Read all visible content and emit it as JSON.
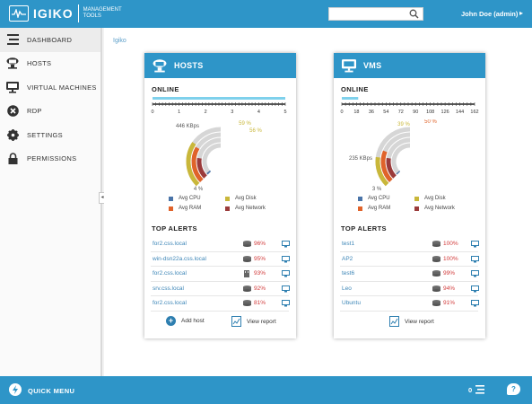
{
  "header": {
    "logo_text": "IGIKO",
    "logo_sub1": "MANAGEMENT",
    "logo_sub2": "TOOLS",
    "search_placeholder": "",
    "user": "John Doe (admin)"
  },
  "sidebar": {
    "items": [
      {
        "label": "DASHBOARD",
        "icon": "dashboard-icon",
        "active": true
      },
      {
        "label": "HOSTS",
        "icon": "hosts-icon"
      },
      {
        "label": "VIRTUAL MACHINES",
        "icon": "monitor-icon"
      },
      {
        "label": "RDP",
        "icon": "rdp-icon"
      },
      {
        "label": "SETTINGS",
        "icon": "gear-icon"
      },
      {
        "label": "PERMISSIONS",
        "icon": "lock-icon"
      }
    ]
  },
  "breadcrumb": "Igiko",
  "hosts_card": {
    "title": "HOSTS",
    "online_label": "ONLINE",
    "online_ticks": [
      "0",
      "1",
      "2",
      "3",
      "4",
      "5"
    ],
    "online_value": 5,
    "online_max": 5,
    "gauge": {
      "cpu_pct": 4,
      "ram_pct": 56,
      "disk_pct": 59,
      "net_value": "446 KBps",
      "labels": {
        "net": "446 KBps",
        "disk": "59 %",
        "ram": "56 %",
        "cpu": "4 %"
      }
    },
    "legend": {
      "cpu": "Avg CPU",
      "disk": "Avg Disk",
      "ram": "Avg RAM",
      "net": "Avg Network"
    },
    "alerts_title": "TOP ALERTS",
    "alerts": [
      {
        "name": "for2.css.local",
        "device": "disk",
        "pct": "96%"
      },
      {
        "name": "win-dsn22a.css.local",
        "device": "disk",
        "pct": "95%"
      },
      {
        "name": "for2.css.local",
        "device": "memory",
        "pct": "93%"
      },
      {
        "name": "srv.css.local",
        "device": "disk",
        "pct": "92%"
      },
      {
        "name": "for2.css.local",
        "device": "disk",
        "pct": "81%"
      }
    ],
    "add_label": "Add host",
    "report_label": "View report"
  },
  "vms_card": {
    "title": "VMS",
    "online_label": "ONLINE",
    "online_ticks": [
      "0",
      "18",
      "36",
      "54",
      "72",
      "90",
      "108",
      "126",
      "144",
      "162"
    ],
    "online_value": 20,
    "online_max": 162,
    "gauge": {
      "cpu_pct": 3,
      "ram_pct": 50,
      "disk_pct": 39,
      "net_value": "235 KBps",
      "labels": {
        "disk": "39 %",
        "ram": "50 %",
        "net": "235 KBps",
        "cpu": "3 %"
      }
    },
    "legend": {
      "cpu": "Avg CPU",
      "disk": "Avg Disk",
      "ram": "Avg RAM",
      "net": "Avg Network"
    },
    "alerts_title": "TOP ALERTS",
    "alerts": [
      {
        "name": "test1",
        "device": "disk",
        "pct": "100%"
      },
      {
        "name": "AP2",
        "device": "disk",
        "pct": "100%"
      },
      {
        "name": "test6",
        "device": "disk",
        "pct": "99%"
      },
      {
        "name": "Leo",
        "device": "disk",
        "pct": "94%"
      },
      {
        "name": "Ubuntu",
        "device": "disk",
        "pct": "91%"
      }
    ],
    "report_label": "View report"
  },
  "footer": {
    "quick_menu": "QUICK MENU",
    "count": "0",
    "help": "?"
  },
  "colors": {
    "brand": "#2e95c8",
    "cpu": "#4a74a8",
    "disk": "#c9b73a",
    "ram": "#e0632a",
    "net": "#9b3b3b",
    "alert": "#d23b3b",
    "online_bar": "#7fd1ec"
  }
}
